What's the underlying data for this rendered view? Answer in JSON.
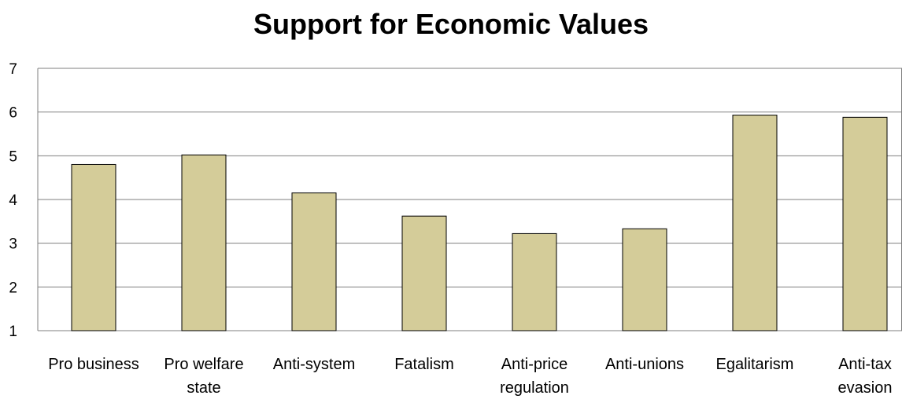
{
  "chart_data": {
    "type": "bar",
    "title": "Support for Economic Values",
    "xlabel": "",
    "ylabel": "",
    "ylim": [
      1,
      7
    ],
    "yticks": [
      1,
      2,
      3,
      4,
      5,
      6,
      7
    ],
    "grid": true,
    "categories": [
      [
        "Pro business"
      ],
      [
        "Pro welfare",
        "state"
      ],
      [
        "Anti-system"
      ],
      [
        "Fatalism"
      ],
      [
        "Anti-price",
        "regulation"
      ],
      [
        "Anti-unions"
      ],
      [
        "Egalitarism"
      ],
      [
        "Anti-tax",
        "evasion"
      ]
    ],
    "values": [
      4.8,
      5.02,
      4.15,
      3.62,
      3.22,
      3.33,
      5.93,
      5.88
    ],
    "bar_color": "#d4cc99",
    "bar_stroke": "#000000"
  }
}
